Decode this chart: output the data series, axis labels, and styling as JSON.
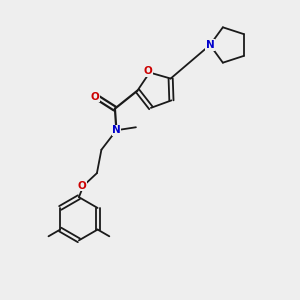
{
  "bg_color": "#eeeeee",
  "bond_color": "#1a1a1a",
  "N_color": "#0000cc",
  "O_color": "#cc0000",
  "figsize": [
    3.0,
    3.0
  ],
  "dpi": 100,
  "xlim": [
    0,
    10
  ],
  "ylim": [
    0,
    10
  ]
}
